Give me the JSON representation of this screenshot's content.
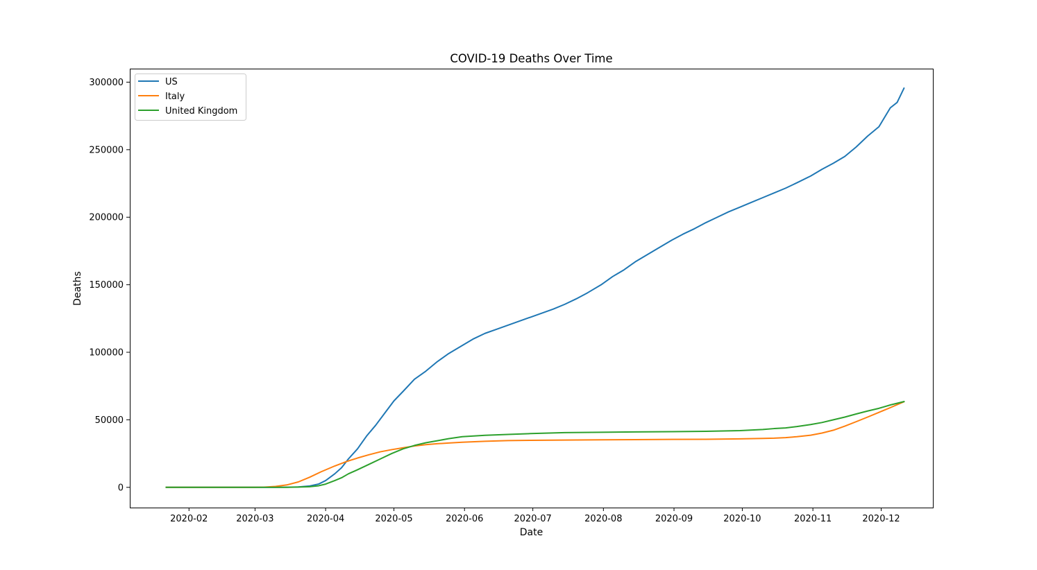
{
  "chart_data": {
    "type": "line",
    "title": "COVID-19 Deaths Over Time",
    "xlabel": "Date",
    "ylabel": "Deaths",
    "xlim": [
      "2020-01-06",
      "2020-12-24"
    ],
    "ylim": [
      -15000,
      310000
    ],
    "x_ticks": [
      "2020-02",
      "2020-03",
      "2020-04",
      "2020-05",
      "2020-06",
      "2020-07",
      "2020-08",
      "2020-09",
      "2020-10",
      "2020-11",
      "2020-12"
    ],
    "y_ticks": [
      "0",
      "50000",
      "100000",
      "150000",
      "200000",
      "250000",
      "300000"
    ],
    "grid": false,
    "legend_position": "top-left",
    "series": [
      {
        "name": "US",
        "color": "#1f77b4",
        "points": [
          [
            "2020-01-22",
            0
          ],
          [
            "2020-02-29",
            1
          ],
          [
            "2020-03-05",
            12
          ],
          [
            "2020-03-10",
            28
          ],
          [
            "2020-03-15",
            68
          ],
          [
            "2020-03-20",
            250
          ],
          [
            "2020-03-25",
            1000
          ],
          [
            "2020-03-29",
            2500
          ],
          [
            "2020-04-01",
            5000
          ],
          [
            "2020-04-05",
            10000
          ],
          [
            "2020-04-08",
            14500
          ],
          [
            "2020-04-11",
            21000
          ],
          [
            "2020-04-15",
            28500
          ],
          [
            "2020-04-19",
            38000
          ],
          [
            "2020-04-23",
            46000
          ],
          [
            "2020-04-27",
            55000
          ],
          [
            "2020-05-01",
            64000
          ],
          [
            "2020-05-05",
            71000
          ],
          [
            "2020-05-10",
            80000
          ],
          [
            "2020-05-15",
            86000
          ],
          [
            "2020-05-20",
            93000
          ],
          [
            "2020-05-25",
            99000
          ],
          [
            "2020-05-31",
            105000
          ],
          [
            "2020-06-05",
            110000
          ],
          [
            "2020-06-10",
            114000
          ],
          [
            "2020-06-15",
            117000
          ],
          [
            "2020-06-20",
            120000
          ],
          [
            "2020-06-25",
            123000
          ],
          [
            "2020-06-30",
            126000
          ],
          [
            "2020-07-05",
            129000
          ],
          [
            "2020-07-10",
            132000
          ],
          [
            "2020-07-15",
            135500
          ],
          [
            "2020-07-20",
            139500
          ],
          [
            "2020-07-25",
            144000
          ],
          [
            "2020-07-31",
            150000
          ],
          [
            "2020-08-05",
            156000
          ],
          [
            "2020-08-10",
            161000
          ],
          [
            "2020-08-15",
            167000
          ],
          [
            "2020-08-20",
            172000
          ],
          [
            "2020-08-25",
            177000
          ],
          [
            "2020-08-31",
            183000
          ],
          [
            "2020-09-05",
            187500
          ],
          [
            "2020-09-10",
            191500
          ],
          [
            "2020-09-15",
            196000
          ],
          [
            "2020-09-20",
            200000
          ],
          [
            "2020-09-25",
            204000
          ],
          [
            "2020-09-30",
            207500
          ],
          [
            "2020-10-05",
            211000
          ],
          [
            "2020-10-10",
            214500
          ],
          [
            "2020-10-15",
            218000
          ],
          [
            "2020-10-20",
            221500
          ],
          [
            "2020-10-25",
            225500
          ],
          [
            "2020-10-31",
            230500
          ],
          [
            "2020-11-05",
            235500
          ],
          [
            "2020-11-10",
            240000
          ],
          [
            "2020-11-15",
            245000
          ],
          [
            "2020-11-20",
            252000
          ],
          [
            "2020-11-25",
            260000
          ],
          [
            "2020-11-30",
            267000
          ],
          [
            "2020-12-05",
            281000
          ],
          [
            "2020-12-08",
            285000
          ],
          [
            "2020-12-11",
            295500
          ]
        ]
      },
      {
        "name": "Italy",
        "color": "#ff7f0e",
        "points": [
          [
            "2020-01-22",
            0
          ],
          [
            "2020-02-22",
            0
          ],
          [
            "2020-02-25",
            10
          ],
          [
            "2020-03-01",
            40
          ],
          [
            "2020-03-05",
            150
          ],
          [
            "2020-03-10",
            650
          ],
          [
            "2020-03-15",
            1800
          ],
          [
            "2020-03-20",
            4000
          ],
          [
            "2020-03-25",
            7500
          ],
          [
            "2020-03-30",
            11500
          ],
          [
            "2020-04-05",
            15800
          ],
          [
            "2020-04-10",
            19000
          ],
          [
            "2020-04-15",
            21700
          ],
          [
            "2020-04-20",
            24100
          ],
          [
            "2020-04-25",
            26300
          ],
          [
            "2020-04-30",
            27900
          ],
          [
            "2020-05-05",
            29300
          ],
          [
            "2020-05-10",
            30600
          ],
          [
            "2020-05-15",
            31600
          ],
          [
            "2020-05-20",
            32300
          ],
          [
            "2020-05-25",
            32800
          ],
          [
            "2020-05-31",
            33400
          ],
          [
            "2020-06-10",
            34100
          ],
          [
            "2020-06-20",
            34600
          ],
          [
            "2020-06-30",
            34800
          ],
          [
            "2020-07-15",
            35000
          ],
          [
            "2020-07-31",
            35200
          ],
          [
            "2020-08-15",
            35300
          ],
          [
            "2020-08-31",
            35500
          ],
          [
            "2020-09-15",
            35600
          ],
          [
            "2020-09-30",
            35900
          ],
          [
            "2020-10-10",
            36200
          ],
          [
            "2020-10-15",
            36400
          ],
          [
            "2020-10-20",
            36800
          ],
          [
            "2020-10-25",
            37500
          ],
          [
            "2020-10-31",
            38600
          ],
          [
            "2020-11-05",
            40200
          ],
          [
            "2020-11-10",
            42300
          ],
          [
            "2020-11-15",
            45300
          ],
          [
            "2020-11-20",
            48600
          ],
          [
            "2020-11-25",
            52000
          ],
          [
            "2020-11-30",
            55500
          ],
          [
            "2020-12-05",
            59000
          ],
          [
            "2020-12-11",
            63400
          ]
        ]
      },
      {
        "name": "United Kingdom",
        "color": "#2ca02c",
        "points": [
          [
            "2020-01-22",
            0
          ],
          [
            "2020-03-01",
            0
          ],
          [
            "2020-03-10",
            6
          ],
          [
            "2020-03-15",
            35
          ],
          [
            "2020-03-20",
            180
          ],
          [
            "2020-03-25",
            450
          ],
          [
            "2020-03-29",
            1200
          ],
          [
            "2020-04-01",
            2400
          ],
          [
            "2020-04-05",
            5000
          ],
          [
            "2020-04-08",
            7100
          ],
          [
            "2020-04-11",
            10000
          ],
          [
            "2020-04-15",
            13000
          ],
          [
            "2020-04-20",
            17000
          ],
          [
            "2020-04-25",
            21000
          ],
          [
            "2020-04-30",
            25000
          ],
          [
            "2020-05-05",
            28500
          ],
          [
            "2020-05-10",
            31000
          ],
          [
            "2020-05-15",
            33000
          ],
          [
            "2020-05-20",
            34500
          ],
          [
            "2020-05-25",
            36000
          ],
          [
            "2020-05-31",
            37500
          ],
          [
            "2020-06-10",
            38500
          ],
          [
            "2020-06-20",
            39200
          ],
          [
            "2020-06-30",
            39800
          ],
          [
            "2020-07-15",
            40500
          ],
          [
            "2020-07-31",
            40800
          ],
          [
            "2020-08-15",
            41000
          ],
          [
            "2020-08-31",
            41200
          ],
          [
            "2020-09-15",
            41500
          ],
          [
            "2020-09-30",
            42000
          ],
          [
            "2020-10-10",
            42800
          ],
          [
            "2020-10-15",
            43500
          ],
          [
            "2020-10-20",
            44000
          ],
          [
            "2020-10-25",
            45000
          ],
          [
            "2020-10-31",
            46500
          ],
          [
            "2020-11-05",
            48000
          ],
          [
            "2020-11-10",
            50000
          ],
          [
            "2020-11-15",
            52000
          ],
          [
            "2020-11-20",
            54300
          ],
          [
            "2020-11-25",
            56500
          ],
          [
            "2020-11-30",
            58500
          ],
          [
            "2020-12-05",
            61000
          ],
          [
            "2020-12-11",
            63500
          ]
        ]
      }
    ]
  }
}
